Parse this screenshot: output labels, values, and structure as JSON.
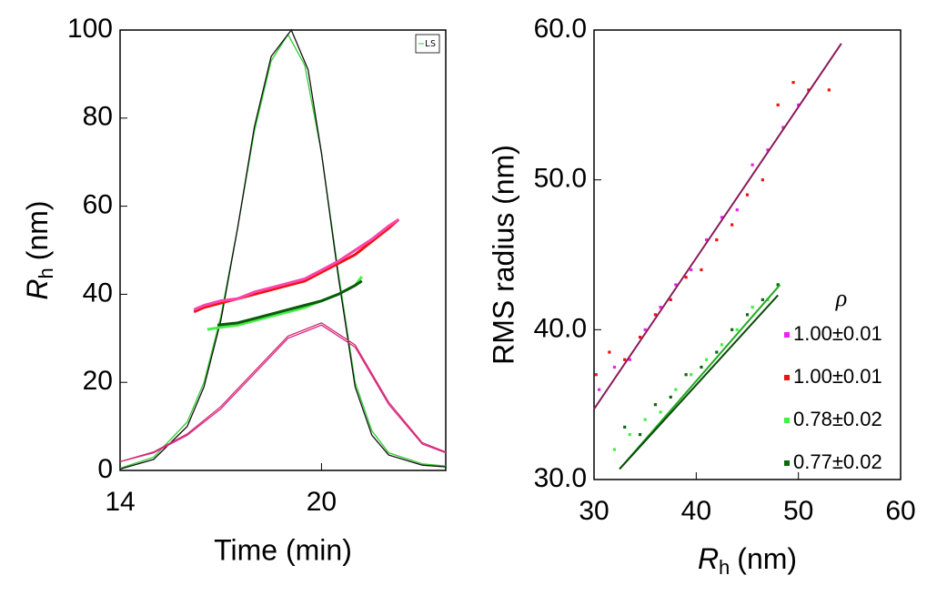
{
  "chart_data": [
    {
      "type": "line",
      "xlabel": "Time (min)",
      "ylabel": {
        "symbol": "R",
        "sub": "h",
        "unit": "(nm)"
      },
      "xlim": [
        14,
        23.7
      ],
      "xticks": [
        14,
        20
      ],
      "ylim": [
        0,
        100
      ],
      "yticks": [
        0,
        20,
        40,
        60,
        80,
        100
      ],
      "legend": "upper right",
      "series": [
        {
          "name": "LS",
          "color": "#33cc33",
          "x": [
            14,
            15,
            16,
            16.5,
            17,
            17.5,
            18,
            18.5,
            19,
            19.5,
            20,
            20.5,
            21,
            21.5,
            22,
            23,
            23.7
          ],
          "values": [
            0.5,
            3,
            11,
            20,
            35,
            55,
            77,
            93,
            99,
            92,
            72,
            45,
            20,
            9,
            4,
            1.5,
            1
          ]
        },
        {
          "color": "#111111",
          "x": [
            14,
            15,
            16,
            16.5,
            17,
            17.5,
            18,
            18.5,
            19.1,
            19.6,
            20,
            20.5,
            21,
            21.5,
            22,
            23,
            23.7
          ],
          "values": [
            0.3,
            2.5,
            10,
            19,
            34,
            55,
            78,
            94,
            100,
            91,
            72,
            44,
            19,
            8,
            3.5,
            1.2,
            0.8
          ]
        },
        {
          "color": "#e0208f",
          "x": [
            14,
            15,
            16,
            17,
            18,
            19,
            20,
            21,
            22,
            23,
            23.7
          ],
          "values": [
            2,
            4,
            8,
            14,
            22,
            30,
            33,
            28,
            15,
            6,
            4
          ]
        },
        {
          "color": "#cc3366",
          "x": [
            14,
            15,
            16,
            17,
            18,
            19,
            20,
            21,
            22,
            23,
            23.7
          ],
          "values": [
            2,
            4.2,
            8.3,
            14.5,
            22.5,
            30.5,
            33.5,
            28.5,
            15.5,
            6.3,
            4.2
          ]
        },
        {
          "color": "#ee1111",
          "x": [
            16.2,
            16.5,
            17,
            17.5,
            18,
            18.5,
            19,
            19.5,
            20,
            20.5,
            21,
            21.5,
            22,
            22.3
          ],
          "values": [
            36,
            37,
            38,
            39,
            40,
            41,
            42,
            43,
            45,
            47,
            49,
            52,
            55,
            57
          ]
        },
        {
          "color": "#ff44aa",
          "x": [
            16.2,
            16.5,
            17,
            17.5,
            18,
            18.5,
            19,
            19.5,
            20,
            20.5,
            21,
            21.5,
            22,
            22.3
          ],
          "values": [
            36.5,
            37.5,
            38.5,
            39,
            40.5,
            41.5,
            42.5,
            43.5,
            45.5,
            47.5,
            50,
            52.5,
            55.5,
            57
          ]
        },
        {
          "color": "#44ee44",
          "x": [
            16.6,
            17,
            17.5,
            18,
            18.5,
            19,
            19.5,
            20,
            20.5,
            21,
            21.2
          ],
          "values": [
            32,
            32.5,
            33,
            34,
            35,
            36,
            37,
            38.5,
            40,
            42,
            44
          ]
        },
        {
          "color": "#0a5a0a",
          "x": [
            16.9,
            17.5,
            18,
            18.5,
            19,
            19.5,
            20,
            20.5,
            21,
            21.2
          ],
          "values": [
            33,
            33.5,
            34.5,
            35.5,
            36.5,
            37.5,
            38.5,
            40,
            42,
            43
          ]
        }
      ]
    },
    {
      "type": "scatter",
      "xlabel": {
        "symbol": "R",
        "sub": "h",
        "unit": "(nm)"
      },
      "ylabel": "RMS radius (nm)",
      "xlim": [
        30,
        60
      ],
      "xticks": [
        30,
        40,
        50,
        60
      ],
      "ylim": [
        30,
        60
      ],
      "yticks": [
        {
          "value": 30,
          "label": "30.0"
        },
        {
          "value": 40,
          "label": "40.0"
        },
        {
          "value": 50,
          "label": "50.0"
        },
        {
          "value": 60,
          "label": "60.0"
        }
      ],
      "legend_title": "ρ",
      "legend": "lower right",
      "series": [
        {
          "name": "1.00±0.01",
          "color": "#ee22ee",
          "x": [
            30.5,
            32,
            33.5,
            35,
            36.5,
            38,
            39.5,
            41,
            42.5,
            44,
            45.5,
            47,
            48.5,
            50
          ],
          "values": [
            36,
            37.5,
            38,
            40,
            41.5,
            43,
            44,
            46,
            47.5,
            48,
            51,
            52,
            53.5,
            55
          ]
        },
        {
          "name": "1.00±0.01",
          "color": "#ee1111",
          "x": [
            30.2,
            31.5,
            33,
            34.5,
            36,
            37.5,
            39,
            40.5,
            42,
            43.5,
            45,
            46.5,
            48,
            49.5,
            51,
            53
          ],
          "values": [
            37,
            38.5,
            38,
            39.5,
            41,
            42,
            43.5,
            44,
            46,
            47,
            49,
            50,
            55,
            56.5,
            56,
            56
          ]
        },
        {
          "name": "0.78±0.02",
          "color": "#44ee44",
          "x": [
            32,
            33.5,
            35,
            36.5,
            38,
            39.5,
            41,
            42.5,
            44,
            45.5,
            47,
            48
          ],
          "values": [
            32,
            33,
            34,
            34.5,
            36,
            37,
            38,
            39,
            40,
            41.5,
            42,
            43
          ]
        },
        {
          "name": "0.77±0.02",
          "color": "#0a6a0a",
          "x": [
            33,
            34.5,
            36,
            37.5,
            39,
            40.5,
            42,
            43.5,
            45,
            46.5,
            48
          ],
          "values": [
            33.5,
            33,
            35,
            35.5,
            37,
            37.5,
            38.5,
            40,
            41,
            42,
            43
          ]
        }
      ],
      "fits": [
        {
          "color": "#8b1a5a",
          "x": [
            30,
            54.2
          ],
          "values": [
            34.7,
            59.1
          ]
        },
        {
          "color": "#22aa22",
          "x": [
            32.5,
            48.2
          ],
          "values": [
            30.7,
            43
          ]
        },
        {
          "color": "#0a4a0a",
          "x": [
            32.5,
            48
          ],
          "values": [
            30.7,
            42.3
          ]
        }
      ]
    }
  ]
}
